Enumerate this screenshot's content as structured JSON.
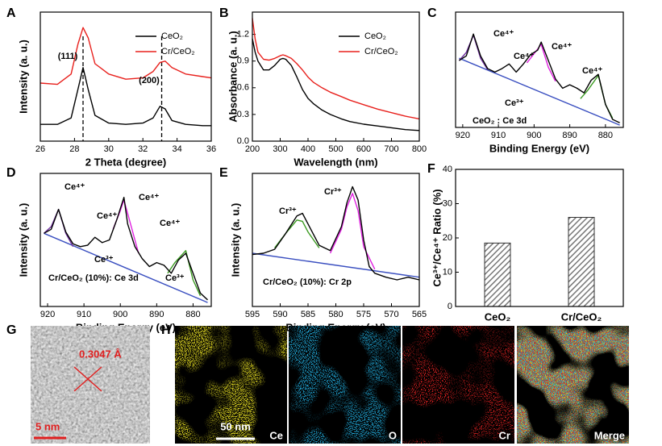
{
  "chart_data": [
    {
      "type": "line",
      "panel": "A",
      "xlabel": "2 Theta (degree)",
      "ylabel": "Intensity (a. u.)",
      "x": [
        26,
        27,
        27.8,
        28.2,
        28.5,
        28.8,
        29.2,
        30,
        31,
        32,
        32.6,
        33,
        33.3,
        33.7,
        34.5,
        35.5,
        36
      ],
      "series": [
        {
          "name": "CeO₂",
          "color": "#000000",
          "values": [
            13,
            13,
            18,
            40,
            57,
            40,
            20,
            14,
            13,
            14,
            18,
            27,
            25,
            16,
            13,
            12,
            12
          ]
        },
        {
          "name": "Cr/CeO₂",
          "color": "#e8201c",
          "values": [
            45,
            44,
            52,
            75,
            88,
            80,
            60,
            52,
            48,
            49,
            54,
            61,
            62,
            57,
            52,
            50,
            49
          ]
        }
      ],
      "xlim": [
        26,
        36
      ],
      "xticks": [
        26,
        28,
        30,
        32,
        34,
        36
      ],
      "ylim": [
        0,
        100
      ],
      "annotations": [
        "(111)",
        "(200)"
      ],
      "vlines": [
        28.5,
        33.1
      ]
    },
    {
      "type": "line",
      "panel": "B",
      "xlabel": "Wavelength (nm)",
      "ylabel": "Absorbance (a. u.)",
      "x": [
        200,
        210,
        220,
        240,
        260,
        280,
        300,
        310,
        320,
        340,
        360,
        380,
        400,
        420,
        450,
        480,
        520,
        550,
        600,
        650,
        700,
        750,
        800
      ],
      "series": [
        {
          "name": "CeO₂",
          "color": "#000000",
          "values": [
            1.15,
            1.0,
            0.9,
            0.8,
            0.8,
            0.85,
            0.92,
            0.93,
            0.92,
            0.85,
            0.72,
            0.58,
            0.48,
            0.42,
            0.35,
            0.3,
            0.25,
            0.22,
            0.19,
            0.17,
            0.15,
            0.13,
            0.12
          ]
        },
        {
          "name": "Cr/CeO₂",
          "color": "#e8201c",
          "values": [
            1.38,
            1.15,
            1.0,
            0.92,
            0.91,
            0.93,
            0.96,
            0.97,
            0.96,
            0.93,
            0.87,
            0.8,
            0.72,
            0.66,
            0.6,
            0.55,
            0.5,
            0.46,
            0.41,
            0.36,
            0.32,
            0.28,
            0.25
          ]
        }
      ],
      "xlim": [
        200,
        800
      ],
      "xticks": [
        200,
        300,
        400,
        500,
        600,
        700,
        800
      ],
      "ylim": [
        0,
        1.45
      ],
      "yticks": [
        {
          "value": 0,
          "label": "0.0"
        },
        0.3,
        0.6,
        0.9,
        1.2
      ]
    },
    {
      "type": "line",
      "panel": "C",
      "xlabel": "Binding Energy (eV)",
      "x": [
        921,
        919,
        917,
        915,
        913,
        911,
        909,
        907,
        905,
        903,
        901,
        899,
        898,
        896,
        894,
        892,
        890,
        888,
        886,
        884,
        882,
        880,
        878,
        876
      ],
      "series": [
        {
          "color": "#3a4fc0",
          "x": [
            921,
            876
          ],
          "values": [
            60,
            2
          ]
        },
        {
          "color": "#7030a0",
          "x": [
            921,
            919,
            917,
            915,
            913
          ],
          "values": [
            58,
            65,
            80,
            60,
            50
          ]
        },
        {
          "color": "#e020e0",
          "x": [
            902,
            900,
            898,
            896,
            894
          ],
          "values": [
            56,
            64,
            72,
            52,
            40
          ]
        },
        {
          "color": "#3a9a20",
          "x": [
            887,
            885,
            882,
            880,
            878
          ],
          "values": [
            25,
            32,
            45,
            20,
            8
          ]
        },
        {
          "color": "#000000",
          "values": [
            58,
            62,
            81,
            62,
            51,
            48,
            51,
            55,
            48,
            55,
            63,
            67,
            74,
            58,
            42,
            34,
            37,
            34,
            30,
            41,
            46,
            20,
            7,
            4
          ]
        }
      ],
      "xlim": [
        922,
        875
      ],
      "xticks": [
        920,
        910,
        900,
        890,
        880
      ],
      "ylim": [
        0,
        100
      ],
      "annotations": [
        "Ce⁴⁺",
        "Ce⁴⁺",
        "Ce⁴⁺",
        "Ce⁴⁺",
        "Ce³⁺",
        "CeO₂ : Ce 3d"
      ]
    },
    {
      "type": "line",
      "panel": "D",
      "xlabel": "Binding Energy (eV)",
      "ylabel": "Intensity (a. u.)",
      "x": [
        921,
        919,
        917,
        915,
        913,
        911,
        909,
        907,
        905,
        903,
        901,
        899,
        898,
        896,
        894,
        892,
        890,
        888,
        886,
        884,
        882,
        880,
        878,
        876
      ],
      "series": [
        {
          "color": "#3a4fc0",
          "x": [
            921,
            876
          ],
          "values": [
            55,
            3
          ]
        },
        {
          "color": "#7030a0",
          "x": [
            921,
            919,
            917,
            915,
            913
          ],
          "values": [
            55,
            60,
            73,
            55,
            45
          ]
        },
        {
          "color": "#e020e0",
          "x": [
            902,
            900,
            899,
            897,
            895
          ],
          "values": [
            58,
            72,
            80,
            60,
            40
          ]
        },
        {
          "color": "#3a9a20",
          "x": [
            887,
            885,
            882,
            880,
            878
          ],
          "values": [
            25,
            33,
            42,
            20,
            8
          ]
        },
        {
          "color": "#000000",
          "values": [
            55,
            58,
            73,
            56,
            47,
            45,
            46,
            52,
            48,
            50,
            65,
            82,
            62,
            45,
            36,
            30,
            33,
            31,
            25,
            35,
            40,
            25,
            10,
            5
          ]
        }
      ],
      "xlim": [
        922,
        875
      ],
      "xticks": [
        920,
        910,
        900,
        890,
        880
      ],
      "ylim": [
        0,
        100
      ],
      "annotations": [
        "Ce⁴⁺",
        "Ce⁴⁺",
        "Ce⁴⁺",
        "Ce⁴⁺",
        "Ce³⁺",
        "Ce³⁺",
        "Cr/CeO₂ (10%): Ce 3d"
      ]
    },
    {
      "type": "line",
      "panel": "E",
      "xlabel": "Binding Energy (eV)",
      "ylabel": "Intensity (a. u.)",
      "x": [
        595,
        593,
        591,
        589,
        587,
        586,
        585,
        583,
        581,
        579,
        578,
        577,
        576,
        575,
        574,
        573,
        571,
        569,
        567,
        565
      ],
      "series": [
        {
          "color": "#3a4fc0",
          "x": [
            595,
            565
          ],
          "values": [
            40,
            22
          ]
        },
        {
          "color": "#e020e0",
          "x": [
            581,
            579,
            578,
            577,
            576,
            575,
            573
          ],
          "values": [
            40,
            58,
            75,
            85,
            72,
            45,
            28
          ]
        },
        {
          "color": "#3a9a20",
          "x": [
            591,
            589,
            587,
            586,
            585,
            583
          ],
          "values": [
            44,
            55,
            65,
            64,
            56,
            44
          ]
        },
        {
          "color": "#000000",
          "values": [
            39,
            40,
            43,
            55,
            68,
            70,
            62,
            46,
            42,
            60,
            78,
            90,
            80,
            50,
            30,
            25,
            22,
            20,
            22,
            20
          ]
        }
      ],
      "xlim": [
        595,
        565
      ],
      "xticks": [
        595,
        590,
        585,
        580,
        575,
        570,
        565
      ],
      "ylim": [
        0,
        100
      ],
      "annotations": [
        "Cr³⁺",
        "Cr³⁺",
        "Cr/CeO₂ (10%): Cr 2p"
      ]
    },
    {
      "type": "bar",
      "panel": "F",
      "ylabel": "Ce³⁺/Ce⁴⁺ Ratio (%)",
      "categories": [
        "CeO₂",
        "Cr/CeO₂"
      ],
      "values": [
        18.5,
        26
      ],
      "color": "#777777",
      "ylim": [
        0,
        40
      ],
      "yticks": [
        0,
        10,
        20,
        30,
        40
      ]
    }
  ],
  "micrographs": {
    "hrtem": {
      "panel": "G",
      "spacing": "0.3047 Å",
      "scale": "5 nm"
    },
    "mapping": {
      "panel": "H",
      "scale": "50 nm",
      "maps": [
        "Ce",
        "O",
        "Cr",
        "Merge"
      ]
    }
  }
}
